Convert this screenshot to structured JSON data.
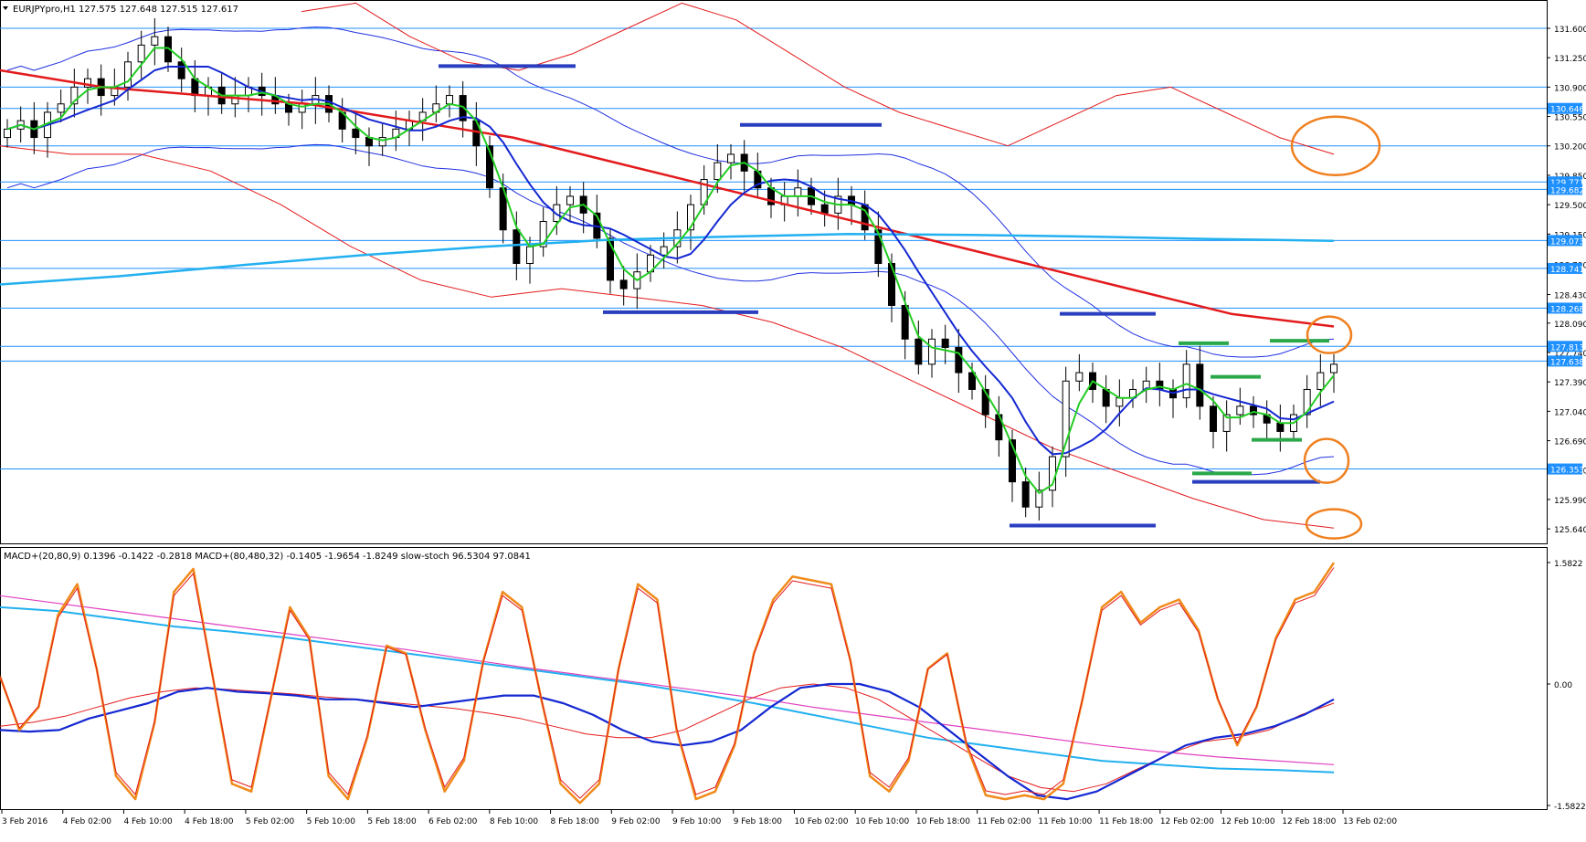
{
  "window": {
    "symbol_info": "EURJPYpro,H1  127.575 127.648 127.515 127.617"
  },
  "indicator_info": "MACD+(20,80,9) 0.1396 -0.1422 -0.2818  MACD+(80,480,32) -0.1405 -1.9654 -1.8249  slow-stoch 96.5304 97.0841",
  "colors": {
    "grid_line": "#1e90ff",
    "candle": "#000000",
    "ma_red": "#e31a1c",
    "ma_blue": "#1428d2",
    "ma_green": "#22cc22",
    "ma_cyan": "#22b0f0",
    "band": "#2030e0",
    "envelope": "#e31a1c",
    "annotation_blue": "#2a3fbf",
    "annotation_green": "#2aa84a",
    "annotation_circle": "#f07f1e",
    "stoch": "#f08a1a",
    "macd_pink": "#e040c0"
  },
  "chart_data": [
    {
      "type": "candlestick",
      "title": "EURJPYpro,H1",
      "price_axis_ticks": [
        "131.600",
        "131.250",
        "130.900",
        "130.550",
        "130.200",
        "129.850",
        "129.500",
        "129.150",
        "128.790",
        "128.430",
        "128.090",
        "127.740",
        "127.390",
        "127.040",
        "126.690",
        "126.340",
        "125.990",
        "125.640"
      ],
      "ylim": [
        125.5,
        131.85
      ],
      "horizontal_levels": [
        131.6,
        130.9,
        130.646,
        130.2,
        129.771,
        129.682,
        129.073,
        128.741,
        128.268,
        127.813,
        127.638,
        126.353
      ],
      "level_labels": [
        "129.771",
        "129.682",
        "129.073",
        "128.741",
        "128.268",
        "127.813",
        "127.638",
        "126.353",
        "130.646"
      ],
      "current_price_label": "127.638",
      "x_labels": [
        "3 Feb 2016",
        "4 Feb 02:00",
        "4 Feb 10:00",
        "4 Feb 18:00",
        "5 Feb 02:00",
        "5 Feb 10:00",
        "5 Feb 18:00",
        "6 Feb 02:00",
        "8 Feb 10:00",
        "8 Feb 18:00",
        "9 Feb 02:00",
        "9 Feb 10:00",
        "9 Feb 18:00",
        "10 Feb 02:00",
        "10 Feb 10:00",
        "10 Feb 18:00",
        "11 Feb 02:00",
        "11 Feb 10:00",
        "11 Feb 18:00",
        "12 Feb 02:00",
        "12 Feb 10:00",
        "12 Feb 18:00",
        "13 Feb 02:00"
      ],
      "close_path": [
        130.4,
        130.5,
        130.3,
        130.6,
        130.7,
        130.9,
        131.0,
        130.8,
        130.9,
        131.2,
        131.4,
        131.5,
        131.2,
        131.0,
        130.8,
        130.9,
        130.7,
        130.8,
        130.9,
        130.8,
        130.7,
        130.6,
        130.7,
        130.8,
        130.6,
        130.4,
        130.3,
        130.2,
        130.3,
        130.4,
        130.5,
        130.6,
        130.7,
        130.8,
        130.5,
        130.2,
        129.7,
        129.2,
        128.8,
        129.0,
        129.3,
        129.5,
        129.6,
        129.4,
        129.1,
        128.6,
        128.5,
        128.7,
        128.9,
        129.0,
        129.2,
        129.5,
        129.8,
        130.0,
        130.1,
        129.9,
        129.7,
        129.5,
        129.6,
        129.7,
        129.5,
        129.4,
        129.6,
        129.5,
        129.2,
        128.8,
        128.3,
        127.9,
        127.6,
        127.9,
        127.8,
        127.5,
        127.3,
        127.0,
        126.7,
        126.2,
        125.9,
        126.1,
        126.5,
        127.4,
        127.5,
        127.3,
        127.1,
        127.2,
        127.3,
        127.4,
        127.3,
        127.2,
        127.6,
        127.1,
        126.8,
        127.0,
        127.1,
        127.0,
        126.9,
        126.8,
        127.0,
        127.3,
        127.5,
        127.6
      ]
    },
    {
      "type": "line",
      "title": "MACD+ / slow-stoch",
      "y_ticks": [
        "1.5822",
        "0.00",
        "-1.5822"
      ],
      "ylim": [
        -1.5822,
        1.5822
      ],
      "series": [
        {
          "name": "slow-stoch",
          "values": [
            0.1,
            -0.6,
            -0.3,
            0.9,
            1.3,
            0.2,
            -1.2,
            -1.5,
            -0.5,
            1.2,
            1.5,
            0.1,
            -1.3,
            -1.4,
            -0.2,
            1.0,
            0.6,
            -1.2,
            -1.5,
            -0.7,
            0.5,
            0.4,
            -0.6,
            -1.4,
            -1.0,
            0.3,
            1.2,
            1.0,
            -0.2,
            -1.3,
            -1.55,
            -1.3,
            0.2,
            1.3,
            1.1,
            -0.6,
            -1.5,
            -1.4,
            -0.8,
            0.4,
            1.1,
            1.4,
            1.35,
            1.3,
            0.3,
            -1.2,
            -1.4,
            -1.0,
            0.2,
            0.4,
            -0.8,
            -1.45,
            -1.5,
            -1.45,
            -1.5,
            -1.3,
            -0.2,
            1.0,
            1.2,
            0.8,
            1.0,
            1.1,
            0.7,
            -0.2,
            -0.8,
            -0.3,
            0.6,
            1.1,
            1.2,
            1.58
          ]
        },
        {
          "name": "MACD+(20,80,9)",
          "values": [
            -0.6,
            -0.62,
            -0.6,
            -0.45,
            -0.35,
            -0.25,
            -0.1,
            -0.05,
            -0.1,
            -0.12,
            -0.15,
            -0.2,
            -0.2,
            -0.25,
            -0.3,
            -0.25,
            -0.2,
            -0.15,
            -0.15,
            -0.25,
            -0.4,
            -0.6,
            -0.75,
            -0.8,
            -0.75,
            -0.6,
            -0.3,
            -0.05,
            0.0,
            0.0,
            -0.1,
            -0.3,
            -0.6,
            -0.9,
            -1.2,
            -1.45,
            -1.5,
            -1.4,
            -1.2,
            -1.0,
            -0.8,
            -0.7,
            -0.65,
            -0.55,
            -0.4,
            -0.2
          ]
        },
        {
          "name": "MACD signal red",
          "values": [
            -0.55,
            -0.5,
            -0.42,
            -0.3,
            -0.18,
            -0.1,
            -0.05,
            -0.07,
            -0.1,
            -0.13,
            -0.17,
            -0.2,
            -0.24,
            -0.28,
            -0.32,
            -0.38,
            -0.45,
            -0.55,
            -0.65,
            -0.7,
            -0.7,
            -0.6,
            -0.4,
            -0.2,
            -0.05,
            0.0,
            -0.05,
            -0.2,
            -0.45,
            -0.7,
            -0.95,
            -1.2,
            -1.35,
            -1.4,
            -1.3,
            -1.1,
            -0.9,
            -0.75,
            -0.7,
            -0.6,
            -0.4,
            -0.25
          ]
        },
        {
          "name": "MACD+(80,480,32)",
          "values": [
            1.0,
            0.95,
            0.85,
            0.75,
            0.68,
            0.6,
            0.5,
            0.4,
            0.3,
            0.2,
            0.1,
            0.0,
            -0.12,
            -0.25,
            -0.4,
            -0.55,
            -0.7,
            -0.8,
            -0.9,
            -1.0,
            -1.05,
            -1.1,
            -1.12,
            -1.15
          ]
        },
        {
          "name": "MACD signal pink",
          "values": [
            1.15,
            1.05,
            0.95,
            0.85,
            0.75,
            0.65,
            0.55,
            0.45,
            0.33,
            0.22,
            0.12,
            0.02,
            -0.08,
            -0.18,
            -0.3,
            -0.4,
            -0.5,
            -0.6,
            -0.7,
            -0.8,
            -0.88,
            -0.95,
            -1.0,
            -1.05
          ]
        }
      ]
    }
  ]
}
